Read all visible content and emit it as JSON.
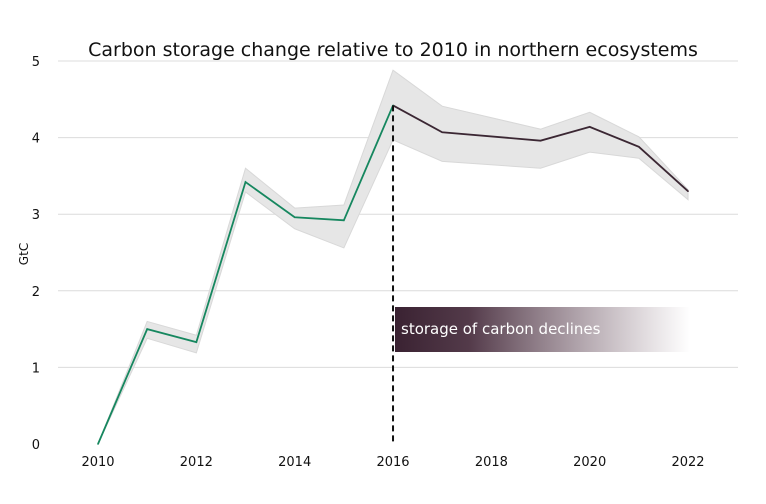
{
  "chart_data": {
    "type": "line",
    "title": "Carbon storage change relative to 2010 in northern ecosystems",
    "xlabel": "",
    "ylabel": "GtC",
    "xlim": [
      2009.5,
      2023
    ],
    "ylim": [
      0,
      5
    ],
    "x_ticks": [
      2010,
      2012,
      2014,
      2016,
      2018,
      2020,
      2022
    ],
    "y_ticks": [
      0,
      1,
      2,
      3,
      4,
      5
    ],
    "grid": "horizontal",
    "x": [
      2010,
      2011,
      2012,
      2013,
      2014,
      2015,
      2016,
      2017,
      2019,
      2020,
      2021,
      2022
    ],
    "values": [
      0,
      1.5,
      1.33,
      3.42,
      2.96,
      2.92,
      4.42,
      4.07,
      3.96,
      4.14,
      3.88,
      3.3
    ],
    "upper": [
      0,
      1.6,
      1.42,
      3.6,
      3.08,
      3.12,
      4.88,
      4.41,
      4.11,
      4.33,
      4.01,
      3.32
    ],
    "lower": [
      0,
      1.38,
      1.19,
      3.29,
      2.81,
      2.56,
      3.97,
      3.69,
      3.6,
      3.81,
      3.73,
      3.19
    ],
    "split_year": 2016,
    "annotation": "storage of carbon declines",
    "colors": {
      "rising": "#16875f",
      "declining": "#3b2733",
      "band": "#e6e6e6",
      "annotation": "#3a2232"
    }
  }
}
